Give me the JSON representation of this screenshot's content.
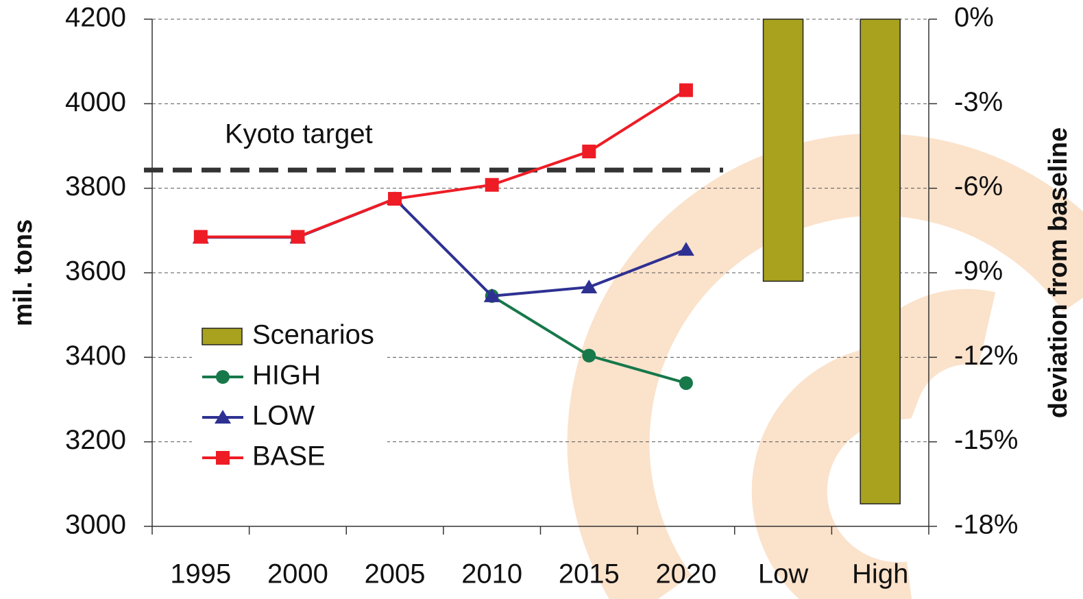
{
  "chart_data": {
    "type": "line",
    "categories": [
      "1995",
      "2000",
      "2005",
      "2010",
      "2015",
      "2020",
      "Low",
      "High"
    ],
    "series": [
      {
        "name": "Scenarios",
        "type": "bar",
        "axis": "y2",
        "color": "#a8a21e",
        "values": [
          null,
          null,
          null,
          null,
          null,
          null,
          -9.3,
          -17.2
        ]
      },
      {
        "name": "HIGH",
        "marker": "circle",
        "color": "#17784a",
        "values": [
          null,
          null,
          null,
          3545,
          3404,
          3339,
          null,
          null
        ]
      },
      {
        "name": "LOW",
        "marker": "triangle",
        "color": "#2e3192",
        "values": [
          3684,
          3684,
          3775,
          3545,
          3566,
          3655,
          null,
          null
        ]
      },
      {
        "name": "BASE",
        "marker": "square",
        "color": "#ee1c25",
        "values": [
          3685,
          3685,
          3775,
          3808,
          3887,
          4032,
          null,
          null
        ]
      }
    ],
    "reference_line": {
      "label": "Kyoto target",
      "value": 3843
    },
    "ylabel": "mil. tons",
    "y2label": "deviation from baseline",
    "ylim": [
      3000,
      4200
    ],
    "yticks": [
      3000,
      3200,
      3400,
      3600,
      3800,
      4000,
      4200
    ],
    "y2lim": [
      -18,
      0
    ],
    "y2ticks": [
      {
        "value": -18,
        "label": "-18%"
      },
      {
        "value": -15,
        "label": "-15%"
      },
      {
        "value": -12,
        "label": "-12%"
      },
      {
        "value": -9,
        "label": "-9%"
      },
      {
        "value": -6,
        "label": "-6%"
      },
      {
        "value": -3,
        "label": "-3%"
      },
      {
        "value": 0,
        "label": "0%"
      }
    ],
    "grid": true,
    "legend_position": "left"
  }
}
